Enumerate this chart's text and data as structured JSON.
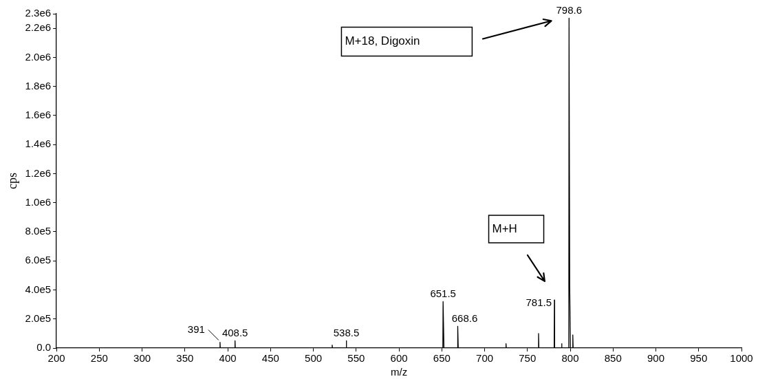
{
  "chart_data": {
    "type": "line",
    "xlabel": "m/z",
    "ylabel": "cps",
    "x": [
      200,
      390.7,
      391,
      391.3,
      408.2,
      408.5,
      408.8,
      521.7,
      522,
      522.3,
      538.2,
      538.5,
      538.8,
      651.2,
      651.5,
      652.5,
      668.3,
      668.6,
      669.2,
      724.7,
      725,
      725.3,
      762.7,
      763,
      763.4,
      781.2,
      781.5,
      781.8,
      789.7,
      790,
      790.3,
      798.3,
      798.6,
      799.4,
      800.2,
      802.7,
      803,
      803.4,
      1000
    ],
    "series": [
      {
        "color": "#000000",
        "values": [
          0,
          0,
          40000,
          0,
          0,
          50000,
          0,
          0,
          20000,
          0,
          0,
          50000,
          0,
          0,
          320000,
          0,
          0,
          150000,
          0,
          0,
          30000,
          0,
          0,
          100000,
          0,
          0,
          330000,
          0,
          0,
          30000,
          0,
          0,
          2270000,
          420000,
          0,
          0,
          90000,
          0,
          0
        ]
      }
    ],
    "xlim": [
      200,
      1000
    ],
    "xticks": [
      200,
      250,
      300,
      350,
      400,
      450,
      500,
      550,
      600,
      650,
      700,
      750,
      800,
      850,
      900,
      950,
      1000
    ],
    "ylim": [
      0,
      2300000
    ],
    "yticks": [
      {
        "value": 0,
        "label": "0.0"
      },
      {
        "value": 200000,
        "label": "2.0e5"
      },
      {
        "value": 400000,
        "label": "4.0e5"
      },
      {
        "value": 600000,
        "label": "6.0e5"
      },
      {
        "value": 800000,
        "label": "8.0e5"
      },
      {
        "value": 1000000,
        "label": "1.0e6"
      },
      {
        "value": 1200000,
        "label": "1.2e6"
      },
      {
        "value": 1400000,
        "label": "1.4e6"
      },
      {
        "value": 1600000,
        "label": "1.6e6"
      },
      {
        "value": 1800000,
        "label": "1.8e6"
      },
      {
        "value": 2000000,
        "label": "2.0e6"
      },
      {
        "value": 2200000,
        "label": "2.2e6"
      },
      {
        "value": 2300000,
        "label": "2.3e6"
      }
    ],
    "annotations": [
      "M+18, Digoxin",
      "M+H",
      {
        "text": "391",
        "x": 391,
        "y": 40000
      },
      {
        "text": "408.5",
        "x": 408.5,
        "y": 50000
      },
      {
        "text": "538.5",
        "x": 538.5,
        "y": 50000
      },
      {
        "text": "651.5",
        "x": 651.5,
        "y": 320000
      },
      {
        "text": "668.6",
        "x": 668.6,
        "y": 150000
      },
      {
        "text": "781.5",
        "x": 781.5,
        "y": 330000
      },
      {
        "text": "798.6",
        "x": 798.6,
        "y": 2270000
      }
    ],
    "grid": false,
    "legend": false,
    "marker": "none",
    "line_style": "solid"
  }
}
